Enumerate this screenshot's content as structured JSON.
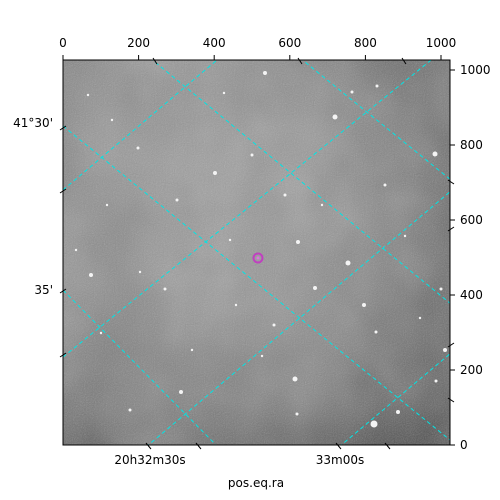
{
  "axes": {
    "bottom_ra_labels": [
      "20h32m30s",
      "33m00s"
    ],
    "left_dec_labels": [
      "41°30'",
      "35'"
    ],
    "top_pixel_ticks": [
      "0",
      "200",
      "400",
      "600",
      "800",
      "1000"
    ],
    "right_pixel_ticks": [
      "0",
      "200",
      "400",
      "600",
      "800",
      "1000"
    ],
    "xlabel": "pos.eq.ra",
    "pixel_range": [
      0,
      1024
    ],
    "grid_color": "#00e5e5"
  },
  "image": {
    "type": "grayscale sky survey cutout",
    "marker_color": "#c040c0"
  }
}
